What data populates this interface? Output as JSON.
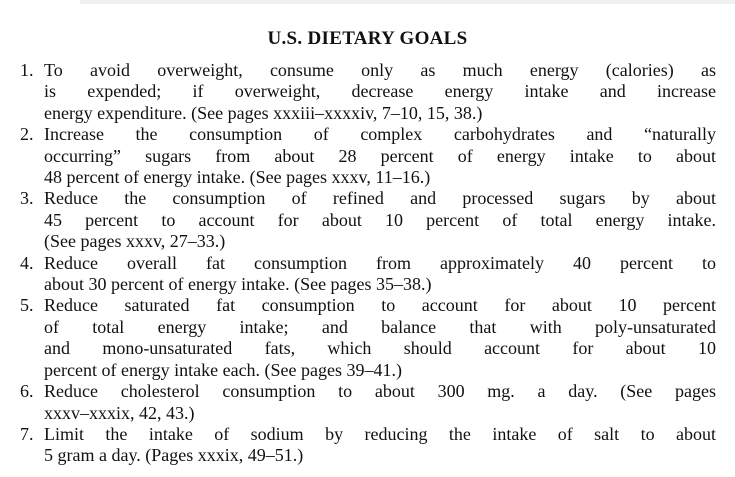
{
  "title": "U.S. DIETARY GOALS",
  "goals": [
    {
      "number": "1.",
      "lines": [
        "To avoid overweight, consume only as much energy (calories) as",
        "is expended; if overweight, decrease energy intake and increase",
        "energy expenditure. (See pages xxxiii–xxxxiv, 7–10, 15, 38.)"
      ]
    },
    {
      "number": "2.",
      "lines": [
        "Increase the consumption of complex carbohydrates and “naturally",
        "occurring” sugars from about 28 percent of energy intake to about",
        "48 percent of energy intake. (See pages xxxv, 11–16.)"
      ]
    },
    {
      "number": "3.",
      "lines": [
        "Reduce the consumption of refined and processed sugars by about",
        "45 percent to account for about 10 percent of total energy intake.",
        "(See pages xxxv, 27–33.)"
      ]
    },
    {
      "number": "4.",
      "lines": [
        "Reduce overall fat consumption from approximately 40 percent to",
        "about 30 percent of energy intake. (See pages 35–38.)"
      ]
    },
    {
      "number": "5.",
      "lines": [
        "Reduce saturated fat consumption to account for about 10 percent",
        "of total energy intake; and balance that with poly-unsaturated",
        "and mono-unsaturated fats, which should account for about 10",
        "percent of energy intake each. (See pages 39–41.)"
      ]
    },
    {
      "number": "6.",
      "lines": [
        "Reduce cholesterol consumption to about 300 mg. a day. (See pages",
        "xxxv–xxxix, 42, 43.)"
      ]
    },
    {
      "number": "7.",
      "lines": [
        "Limit the intake of sodium by reducing the intake of salt to about",
        "5 gram a day. (Pages xxxix, 49–51.)"
      ]
    }
  ]
}
